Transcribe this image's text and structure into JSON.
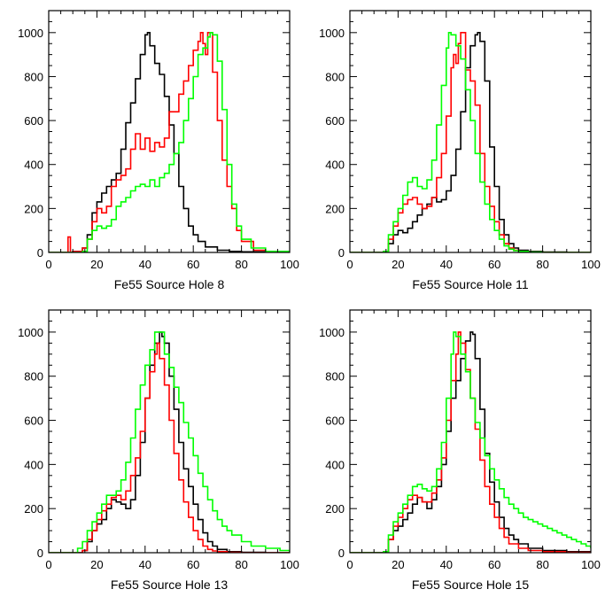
{
  "chart_data": [
    {
      "type": "line",
      "xlabel": "Fe55 Source Hole 8",
      "xlim": [
        0,
        100
      ],
      "ylim": [
        0,
        1100
      ],
      "xticks": [
        0,
        20,
        40,
        60,
        80,
        100
      ],
      "yticks": [
        0,
        200,
        400,
        600,
        800,
        1000
      ],
      "grid": false,
      "series": [
        {
          "color": "#000000",
          "x": [
            0,
            5,
            10,
            14,
            16,
            18,
            20,
            22,
            24,
            26,
            28,
            30,
            32,
            34,
            36,
            38,
            40,
            41,
            42,
            44,
            46,
            48,
            50,
            52,
            54,
            56,
            58,
            60,
            62,
            65,
            70,
            75,
            80,
            90,
            100
          ],
          "y": [
            0,
            0,
            5,
            20,
            80,
            180,
            230,
            270,
            300,
            330,
            360,
            470,
            590,
            680,
            790,
            900,
            990,
            1000,
            940,
            860,
            810,
            710,
            580,
            450,
            300,
            200,
            120,
            80,
            50,
            25,
            10,
            5,
            3,
            0,
            0
          ]
        },
        {
          "color": "#ff0000",
          "x": [
            0,
            6,
            8,
            9,
            10,
            14,
            16,
            18,
            20,
            22,
            24,
            26,
            28,
            30,
            32,
            34,
            36,
            38,
            40,
            42,
            44,
            46,
            48,
            50,
            52,
            54,
            56,
            58,
            60,
            62,
            63,
            64,
            65,
            66,
            68,
            70,
            72,
            74,
            76,
            78,
            80,
            85,
            90,
            100
          ],
          "y": [
            0,
            0,
            70,
            0,
            5,
            20,
            60,
            140,
            200,
            180,
            210,
            300,
            330,
            350,
            380,
            470,
            540,
            470,
            520,
            460,
            500,
            480,
            520,
            640,
            640,
            720,
            780,
            850,
            920,
            960,
            1000,
            950,
            900,
            1000,
            820,
            600,
            420,
            300,
            200,
            100,
            50,
            10,
            5,
            0
          ],
          "note": ""
        },
        {
          "color": "#00ff00",
          "x": [
            0,
            10,
            14,
            16,
            18,
            20,
            22,
            24,
            26,
            28,
            30,
            32,
            34,
            36,
            38,
            40,
            42,
            44,
            46,
            48,
            50,
            52,
            54,
            56,
            58,
            60,
            62,
            64,
            66,
            67,
            68,
            70,
            72,
            74,
            76,
            78,
            80,
            84,
            90,
            100
          ],
          "y": [
            0,
            0,
            5,
            60,
            100,
            120,
            110,
            120,
            150,
            210,
            230,
            250,
            280,
            300,
            310,
            300,
            330,
            300,
            340,
            360,
            400,
            450,
            500,
            600,
            700,
            800,
            900,
            930,
            980,
            1000,
            990,
            870,
            650,
            400,
            220,
            120,
            60,
            20,
            5,
            0
          ]
        }
      ]
    },
    {
      "type": "line",
      "xlabel": "Fe55 Source Hole 11",
      "xlim": [
        0,
        100
      ],
      "ylim": [
        0,
        1100
      ],
      "xticks": [
        0,
        20,
        40,
        60,
        80,
        100
      ],
      "yticks": [
        0,
        200,
        400,
        600,
        800,
        1000
      ],
      "grid": false,
      "series": [
        {
          "color": "#000000",
          "x": [
            0,
            10,
            14,
            16,
            18,
            20,
            22,
            24,
            26,
            28,
            30,
            32,
            34,
            36,
            38,
            40,
            42,
            44,
            46,
            48,
            50,
            52,
            53,
            54,
            56,
            58,
            60,
            62,
            64,
            66,
            68,
            70,
            74,
            80,
            90,
            100
          ],
          "y": [
            0,
            0,
            5,
            40,
            80,
            100,
            90,
            110,
            140,
            170,
            200,
            220,
            250,
            230,
            240,
            280,
            350,
            470,
            640,
            840,
            940,
            990,
            1000,
            960,
            780,
            480,
            300,
            150,
            80,
            40,
            20,
            10,
            5,
            2,
            0,
            0
          ]
        },
        {
          "color": "#ff0000",
          "x": [
            0,
            10,
            14,
            16,
            18,
            20,
            22,
            24,
            26,
            28,
            30,
            32,
            34,
            36,
            38,
            40,
            42,
            43,
            44,
            45,
            46,
            48,
            50,
            52,
            54,
            56,
            58,
            60,
            62,
            64,
            66,
            68,
            70,
            74,
            80,
            90,
            100
          ],
          "y": [
            0,
            0,
            5,
            60,
            120,
            180,
            220,
            240,
            250,
            220,
            200,
            210,
            250,
            340,
            450,
            620,
            840,
            900,
            860,
            950,
            1000,
            830,
            780,
            670,
            450,
            300,
            210,
            140,
            80,
            40,
            20,
            10,
            5,
            2,
            0,
            0,
            0
          ]
        },
        {
          "color": "#00ff00",
          "x": [
            0,
            10,
            14,
            16,
            18,
            20,
            22,
            24,
            26,
            28,
            30,
            32,
            34,
            36,
            38,
            40,
            41,
            42,
            44,
            46,
            48,
            50,
            52,
            54,
            56,
            58,
            60,
            62,
            64,
            66,
            68,
            70,
            74,
            80,
            90,
            100
          ],
          "y": [
            0,
            0,
            5,
            80,
            140,
            200,
            260,
            320,
            340,
            300,
            290,
            330,
            420,
            580,
            760,
            930,
            1000,
            990,
            940,
            880,
            740,
            600,
            450,
            320,
            220,
            150,
            100,
            60,
            30,
            15,
            8,
            5,
            2,
            0,
            0,
            0
          ]
        }
      ]
    },
    {
      "type": "line",
      "xlabel": "Fe55 Source Hole 13",
      "xlim": [
        0,
        100
      ],
      "ylim": [
        0,
        1100
      ],
      "xticks": [
        0,
        20,
        40,
        60,
        80,
        100
      ],
      "yticks": [
        0,
        200,
        400,
        600,
        800,
        1000
      ],
      "grid": false,
      "series": [
        {
          "color": "#000000",
          "x": [
            0,
            10,
            14,
            16,
            18,
            20,
            22,
            24,
            26,
            28,
            30,
            32,
            34,
            36,
            38,
            40,
            42,
            44,
            46,
            47,
            48,
            50,
            52,
            54,
            56,
            58,
            60,
            62,
            64,
            66,
            68,
            70,
            74,
            80,
            90,
            100
          ],
          "y": [
            0,
            0,
            10,
            50,
            100,
            130,
            150,
            200,
            240,
            230,
            220,
            200,
            240,
            350,
            500,
            700,
            850,
            950,
            1000,
            980,
            950,
            800,
            650,
            500,
            380,
            300,
            220,
            150,
            90,
            50,
            30,
            15,
            5,
            2,
            0,
            0
          ]
        },
        {
          "color": "#ff0000",
          "x": [
            0,
            10,
            14,
            16,
            18,
            20,
            22,
            24,
            26,
            28,
            30,
            32,
            34,
            36,
            38,
            40,
            42,
            44,
            45,
            46,
            48,
            50,
            52,
            54,
            56,
            58,
            60,
            62,
            64,
            66,
            68,
            70,
            74,
            80,
            90,
            100
          ],
          "y": [
            0,
            0,
            10,
            60,
            100,
            150,
            190,
            220,
            250,
            260,
            240,
            280,
            350,
            430,
            550,
            700,
            820,
            900,
            950,
            880,
            760,
            600,
            450,
            330,
            230,
            160,
            100,
            60,
            30,
            15,
            8,
            5,
            2,
            0,
            0,
            0
          ]
        },
        {
          "color": "#00ff00",
          "x": [
            0,
            8,
            12,
            14,
            16,
            18,
            20,
            22,
            24,
            26,
            28,
            30,
            32,
            34,
            36,
            38,
            40,
            42,
            44,
            46,
            48,
            50,
            52,
            54,
            56,
            58,
            60,
            62,
            64,
            66,
            68,
            70,
            72,
            74,
            76,
            80,
            84,
            90,
            96,
            100
          ],
          "y": [
            0,
            0,
            20,
            50,
            100,
            140,
            180,
            220,
            260,
            260,
            280,
            330,
            410,
            520,
            650,
            760,
            850,
            920,
            1000,
            1000,
            900,
            840,
            750,
            680,
            590,
            520,
            440,
            360,
            300,
            240,
            190,
            150,
            120,
            100,
            80,
            50,
            30,
            20,
            10,
            0
          ]
        }
      ]
    },
    {
      "type": "line",
      "xlabel": "Fe55 Source Hole 15",
      "xlim": [
        0,
        100
      ],
      "ylim": [
        0,
        1100
      ],
      "xticks": [
        0,
        20,
        40,
        60,
        80,
        100
      ],
      "yticks": [
        0,
        200,
        400,
        600,
        800,
        1000
      ],
      "grid": false,
      "series": [
        {
          "color": "#000000",
          "x": [
            0,
            10,
            14,
            16,
            18,
            20,
            22,
            24,
            26,
            28,
            30,
            32,
            34,
            36,
            38,
            40,
            42,
            44,
            46,
            48,
            50,
            51,
            52,
            54,
            56,
            58,
            60,
            62,
            64,
            66,
            68,
            70,
            74,
            80,
            90,
            100
          ],
          "y": [
            0,
            0,
            5,
            60,
            100,
            120,
            150,
            180,
            220,
            250,
            230,
            200,
            240,
            300,
            400,
            550,
            700,
            780,
            880,
            960,
            1000,
            990,
            880,
            650,
            450,
            320,
            230,
            160,
            110,
            80,
            60,
            40,
            20,
            10,
            5,
            0
          ]
        },
        {
          "color": "#ff0000",
          "x": [
            0,
            10,
            14,
            16,
            18,
            20,
            22,
            24,
            26,
            28,
            30,
            32,
            34,
            36,
            38,
            40,
            42,
            44,
            45,
            46,
            48,
            50,
            52,
            54,
            56,
            58,
            60,
            62,
            64,
            66,
            70,
            74,
            80,
            90,
            100
          ],
          "y": [
            0,
            0,
            5,
            60,
            120,
            160,
            200,
            240,
            260,
            250,
            230,
            230,
            270,
            330,
            430,
            600,
            780,
            900,
            1000,
            950,
            830,
            700,
            560,
            420,
            300,
            220,
            160,
            110,
            70,
            40,
            20,
            10,
            5,
            2,
            0
          ]
        },
        {
          "color": "#00ff00",
          "x": [
            0,
            10,
            14,
            16,
            18,
            20,
            22,
            24,
            26,
            28,
            30,
            32,
            34,
            36,
            38,
            40,
            42,
            43,
            44,
            46,
            48,
            50,
            52,
            54,
            56,
            58,
            60,
            62,
            64,
            66,
            68,
            70,
            72,
            74,
            76,
            78,
            80,
            82,
            84,
            86,
            88,
            90,
            92,
            94,
            96,
            98,
            100
          ],
          "y": [
            0,
            0,
            5,
            80,
            140,
            180,
            220,
            260,
            300,
            310,
            290,
            280,
            300,
            380,
            500,
            700,
            900,
            1000,
            980,
            900,
            820,
            700,
            590,
            520,
            440,
            380,
            330,
            290,
            250,
            220,
            200,
            180,
            160,
            150,
            140,
            130,
            120,
            110,
            100,
            90,
            80,
            70,
            60,
            50,
            40,
            30,
            20
          ]
        }
      ]
    }
  ]
}
